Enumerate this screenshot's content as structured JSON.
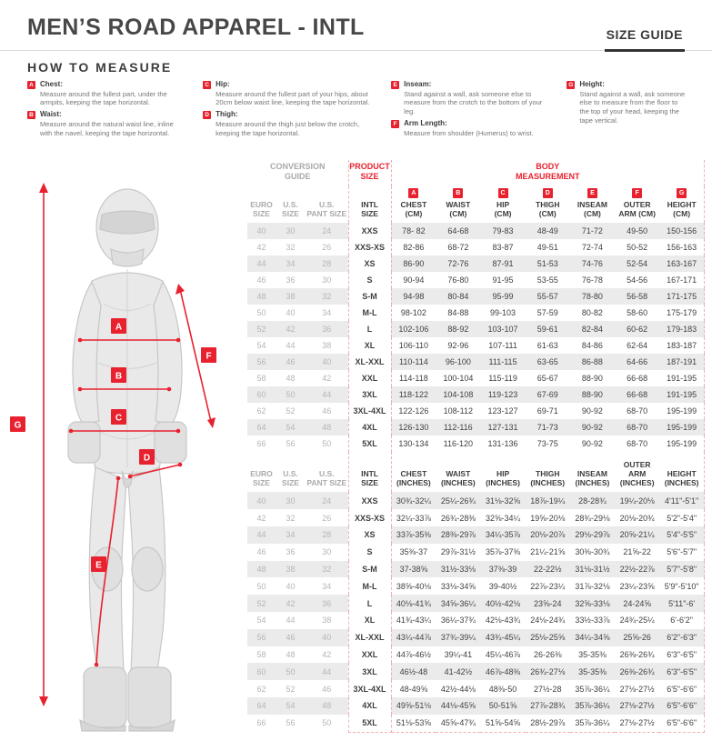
{
  "header": {
    "title": "MEN’S ROAD APPAREL - INTL",
    "size_guide_label": "SIZE GUIDE"
  },
  "how_to_measure": {
    "heading": "HOW TO MEASURE",
    "items": [
      {
        "letter": "A",
        "label": "Chest:",
        "text": "Measure around the fullest part, under the armpits, keeping the tape horizontal."
      },
      {
        "letter": "B",
        "label": "Waist:",
        "text": "Measure around the natural waist line, inline with the navel, keeping the tape horizontal."
      },
      {
        "letter": "C",
        "label": "Hip:",
        "text": "Measure around the fullest part of your hips, about 20cm below waist line, keeping the tape horizontal."
      },
      {
        "letter": "D",
        "label": "Thigh:",
        "text": "Measure around the thigh just below the crotch, keeping the tape horizontal."
      },
      {
        "letter": "E",
        "label": "Inseam:",
        "text": "Stand against a wall, ask someone else to measure from the crotch to the bottom of your leg."
      },
      {
        "letter": "F",
        "label": "Arm Length:",
        "text": "Measure from shoulder (Humerus) to wrist."
      },
      {
        "letter": "G",
        "label": "Height:",
        "text": "Stand against a wall, ask someone else to measure from the floor to the top of your head, keeping the tape vertical."
      }
    ],
    "column_layout": [
      [
        0,
        1
      ],
      [
        2,
        3
      ],
      [
        4,
        5
      ],
      [
        6
      ]
    ]
  },
  "figure": {
    "badge_letters": [
      "A",
      "B",
      "C",
      "D",
      "E",
      "F",
      "G"
    ]
  },
  "table": {
    "group_headers": {
      "conversion": "CONVERSION\nGUIDE",
      "product": "PRODUCT\nSIZE",
      "body": "BODY\nMEASUREMENT"
    },
    "cm_columns": [
      {
        "label": "EURO\nSIZE",
        "gray": true
      },
      {
        "label": "U.S.\nSIZE",
        "gray": true
      },
      {
        "label": "U.S.\nPANT SIZE",
        "gray": true
      },
      {
        "label": "INTL\nSIZE"
      },
      {
        "badge": "A",
        "label": "CHEST\n(CM)"
      },
      {
        "badge": "B",
        "label": "WAIST\n(CM)"
      },
      {
        "badge": "C",
        "label": "HIP\n(CM)"
      },
      {
        "badge": "D",
        "label": "THIGH\n(CM)"
      },
      {
        "badge": "E",
        "label": "INSEAM\n(CM)"
      },
      {
        "badge": "F",
        "label": "OUTER\nARM (CM)"
      },
      {
        "badge": "G",
        "label": "HEIGHT\n(CM)"
      }
    ],
    "cm_rows": [
      [
        "40",
        "30",
        "24",
        "XXS",
        "78- 82",
        "64-68",
        "79-83",
        "48-49",
        "71-72",
        "49-50",
        "150-156"
      ],
      [
        "42",
        "32",
        "26",
        "XXS-XS",
        "82-86",
        "68-72",
        "83-87",
        "49-51",
        "72-74",
        "50-52",
        "156-163"
      ],
      [
        "44",
        "34",
        "28",
        "XS",
        "86-90",
        "72-76",
        "87-91",
        "51-53",
        "74-76",
        "52-54",
        "163-167"
      ],
      [
        "46",
        "36",
        "30",
        "S",
        "90-94",
        "76-80",
        "91-95",
        "53-55",
        "76-78",
        "54-56",
        "167-171"
      ],
      [
        "48",
        "38",
        "32",
        "S-M",
        "94-98",
        "80-84",
        "95-99",
        "55-57",
        "78-80",
        "56-58",
        "171-175"
      ],
      [
        "50",
        "40",
        "34",
        "M-L",
        "98-102",
        "84-88",
        "99-103",
        "57-59",
        "80-82",
        "58-60",
        "175-179"
      ],
      [
        "52",
        "42",
        "36",
        "L",
        "102-106",
        "88-92",
        "103-107",
        "59-61",
        "82-84",
        "60-62",
        "179-183"
      ],
      [
        "54",
        "44",
        "38",
        "XL",
        "106-110",
        "92-96",
        "107-111",
        "61-63",
        "84-86",
        "62-64",
        "183-187"
      ],
      [
        "56",
        "46",
        "40",
        "XL-XXL",
        "110-114",
        "96-100",
        "111-115",
        "63-65",
        "86-88",
        "64-66",
        "187-191"
      ],
      [
        "58",
        "48",
        "42",
        "XXL",
        "114-118",
        "100-104",
        "115-119",
        "65-67",
        "88-90",
        "66-68",
        "191-195"
      ],
      [
        "60",
        "50",
        "44",
        "3XL",
        "118-122",
        "104-108",
        "119-123",
        "67-69",
        "88-90",
        "66-68",
        "191-195"
      ],
      [
        "62",
        "52",
        "46",
        "3XL-4XL",
        "122-126",
        "108-112",
        "123-127",
        "69-71",
        "90-92",
        "68-70",
        "195-199"
      ],
      [
        "64",
        "54",
        "48",
        "4XL",
        "126-130",
        "112-116",
        "127-131",
        "71-73",
        "90-92",
        "68-70",
        "195-199"
      ],
      [
        "66",
        "56",
        "50",
        "5XL",
        "130-134",
        "116-120",
        "131-136",
        "73-75",
        "90-92",
        "68-70",
        "195-199"
      ]
    ],
    "inches_columns": [
      {
        "label": "EURO\nSIZE",
        "gray": true
      },
      {
        "label": "U.S.\nSIZE",
        "gray": true
      },
      {
        "label": "U.S.\nPANT SIZE",
        "gray": true
      },
      {
        "label": "INTL\nSIZE"
      },
      {
        "label": "CHEST\n(INCHES)"
      },
      {
        "label": "WAIST\n(INCHES)"
      },
      {
        "label": "HIP\n(INCHES)"
      },
      {
        "label": "THIGH\n(INCHES)"
      },
      {
        "label": "INSEAM\n(INCHES)"
      },
      {
        "label": "OUTER ARM\n(INCHES)"
      },
      {
        "label": "HEIGHT\n(INCHES)"
      }
    ],
    "inches_rows": [
      [
        "40",
        "30",
        "24",
        "XXS",
        "30¾-32¼",
        "25¼-26¾",
        "31⅛-32⅝",
        "18⅞-19¼",
        "28-28¾",
        "19¼-20⅛",
        "4'11\"-5'1\""
      ],
      [
        "42",
        "32",
        "26",
        "XXS-XS",
        "32¼-33⅞",
        "26¾-28⅜",
        "32⅝-34¼",
        "19⅝-20⅛",
        "28¾-29⅛",
        "20⅛-20¾",
        "5'2\"-5'4\""
      ],
      [
        "44",
        "34",
        "28",
        "XS",
        "33⅞-35⅜",
        "28⅜-29⅞",
        "34¼-35⅞",
        "20⅛-20⅞",
        "29⅛-29⅞",
        "20⅝-21¼",
        "5'4\"-5'5\""
      ],
      [
        "46",
        "36",
        "30",
        "S",
        "35⅜-37",
        "29⅞-31½",
        "35⅞-37⅜",
        "21¼-21⅝",
        "30⅜-30¾",
        "21⅝-22",
        "5'6\"-5'7\""
      ],
      [
        "48",
        "38",
        "32",
        "S-M",
        "37-38⅝",
        "31½-33⅛",
        "37⅜-39",
        "22-22½",
        "31⅛-31½",
        "22½-22⅞",
        "5'7\"-5'8\""
      ],
      [
        "50",
        "40",
        "34",
        "M-L",
        "38⅝-40⅛",
        "33⅛-34⅝",
        "39-40½",
        "22⅞-23¼",
        "31⅞-32⅛",
        "23¼-23⅝",
        "5'9\"-5'10\""
      ],
      [
        "52",
        "42",
        "36",
        "L",
        "40⅛-41¾",
        "34⅝-36¼",
        "40½-42⅛",
        "23⅝-24",
        "32⅝-33⅛",
        "24-24⅝",
        "5'11\"-6'"
      ],
      [
        "54",
        "44",
        "38",
        "XL",
        "41¾-43¼",
        "36¼-37¾",
        "42⅛-43¾",
        "24⅛-24¾",
        "33½-33⅞",
        "24¾-25¼",
        "6'-6'2\""
      ],
      [
        "56",
        "46",
        "40",
        "XL-XXL",
        "43¼-44⅞",
        "37¾-39¼",
        "43¾-45¼",
        "25⅛-25⅝",
        "34¼-34⅝",
        "25⅝-26",
        "6'2\"-6'3\""
      ],
      [
        "58",
        "48",
        "42",
        "XXL",
        "44⅞-46½",
        "39¼-41",
        "45¼-46⅞",
        "26-26⅜",
        "35-35⅜",
        "26⅜-26¾",
        "6'3\"-6'5\""
      ],
      [
        "60",
        "50",
        "44",
        "3XL",
        "46½-48",
        "41-42½",
        "46⅞-48⅜",
        "26¾-27⅛",
        "35-35⅜",
        "26⅜-26¾",
        "6'3\"-6'5\""
      ],
      [
        "62",
        "52",
        "46",
        "3XL-4XL",
        "48-49⅝",
        "42½-44⅛",
        "48⅜-50",
        "27½-28",
        "35⅞-36¼",
        "27⅛-27½",
        "6'5\"-6'6\""
      ],
      [
        "64",
        "54",
        "48",
        "4XL",
        "49⅝-51⅛",
        "44⅛-45⅝",
        "50-51⅝",
        "27⅞-28¾",
        "35⅞-36¼",
        "27⅛-27½",
        "6'5\"-6'6\""
      ],
      [
        "66",
        "56",
        "50",
        "5XL",
        "51⅛-53⅝",
        "45⅝-47¾",
        "51⅝-54⅝",
        "28½-29⅞",
        "35⅞-36¼",
        "27⅛-27½",
        "6'5\"-6'6\""
      ]
    ]
  },
  "colors": {
    "accent_red": "#e8212e",
    "stripe_gray": "#ebebeb",
    "muted_gray": "#a9a9a9"
  }
}
